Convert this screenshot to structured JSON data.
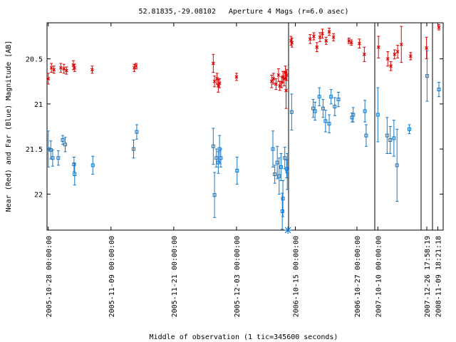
{
  "chart_data": {
    "type": "scatter",
    "title": "52.81835,-29.08102   Aperture 4 Mags (r=6.0 asec)",
    "xlabel": "Middle of observation (1 tic=345600 seconds)",
    "ylabel": "Near (Red) and Far (Blue) Magnitude [AB]",
    "y_inverted": true,
    "ylim": [
      22.4,
      20.1
    ],
    "y_ticks": [
      20.5,
      21,
      21.5,
      22
    ],
    "grid": false,
    "legend": "none",
    "colors": {
      "near": "#dd0000",
      "far": "#1177cc",
      "frame": "#000000"
    },
    "x_tick_labels": [
      "2005-10-28 00:00:00",
      "2005-11-09 00:00:00",
      "2005-11-21 00:00:00",
      "2005-12-03 00:00:00",
      "2006-10-15 00:00:00",
      "2006-10-27 00:00:00",
      "2007-10-10 00:00:00",
      "2007-12-26 17:58:19",
      "2008-11-09 18:21:18"
    ],
    "segments": [
      {
        "x_start": -0.2,
        "x_end": 38.3,
        "tick_positions": [
          0,
          10,
          20,
          30
        ]
      },
      {
        "x_start": 0,
        "x_end": 14,
        "tick_positions": [
          1.1,
          11.1
        ]
      },
      {
        "x_start": 0,
        "x_end": 7.5,
        "tick_positions": [
          0.5
        ]
      },
      {
        "x_start": 0,
        "x_end": 2.1,
        "tick_positions": [
          1.05
        ]
      },
      {
        "x_start": 0,
        "x_end": 3,
        "tick_positions": [
          1.5
        ]
      }
    ],
    "series": [
      {
        "name": "Near (Red)",
        "marker": "x",
        "points": [
          {
            "seg": 0,
            "x": 0,
            "y": 20.72,
            "err": 0.06
          },
          {
            "seg": 0,
            "x": 0.5,
            "y": 20.6,
            "err": 0.05
          },
          {
            "seg": 0,
            "x": 0.9,
            "y": 20.62,
            "err": 0.04
          },
          {
            "seg": 0,
            "x": 2,
            "y": 20.6,
            "err": 0.05
          },
          {
            "seg": 0,
            "x": 2.5,
            "y": 20.61,
            "err": 0.05
          },
          {
            "seg": 0,
            "x": 2.9,
            "y": 20.63,
            "err": 0.04
          },
          {
            "seg": 0,
            "x": 4,
            "y": 20.57,
            "err": 0.05
          },
          {
            "seg": 0,
            "x": 4.2,
            "y": 20.6,
            "err": 0.04
          },
          {
            "seg": 0,
            "x": 7,
            "y": 20.62,
            "err": 0.04
          },
          {
            "seg": 0,
            "x": 13.7,
            "y": 20.6,
            "err": 0.04
          },
          {
            "seg": 0,
            "x": 14,
            "y": 20.58,
            "err": 0.03
          },
          {
            "seg": 0,
            "x": 26.3,
            "y": 20.55,
            "err": 0.1
          },
          {
            "seg": 0,
            "x": 26.5,
            "y": 20.75,
            "err": 0.06
          },
          {
            "seg": 0,
            "x": 26.9,
            "y": 20.72,
            "err": 0.06
          },
          {
            "seg": 0,
            "x": 27.1,
            "y": 20.8,
            "err": 0.07
          },
          {
            "seg": 0,
            "x": 27.3,
            "y": 20.77,
            "err": 0.05
          },
          {
            "seg": 0,
            "x": 30,
            "y": 20.7,
            "err": 0.04
          },
          {
            "seg": 0,
            "x": 35.6,
            "y": 20.75,
            "err": 0.07
          },
          {
            "seg": 0,
            "x": 35.9,
            "y": 20.72,
            "err": 0.06
          },
          {
            "seg": 0,
            "x": 36.3,
            "y": 20.78,
            "err": 0.06
          },
          {
            "seg": 0,
            "x": 36.7,
            "y": 20.68,
            "err": 0.07
          },
          {
            "seg": 0,
            "x": 36.9,
            "y": 20.8,
            "err": 0.05
          },
          {
            "seg": 0,
            "x": 37.2,
            "y": 20.76,
            "err": 0.06
          },
          {
            "seg": 0,
            "x": 37.4,
            "y": 20.7,
            "err": 0.06
          },
          {
            "seg": 0,
            "x": 37.6,
            "y": 20.72,
            "err": 0.08
          },
          {
            "seg": 0,
            "x": 37.8,
            "y": 20.65,
            "err": 0.07
          },
          {
            "seg": 0,
            "x": 37.9,
            "y": 20.85,
            "err": 0.2
          },
          {
            "seg": 0,
            "x": 38,
            "y": 20.68,
            "err": 0.06
          },
          {
            "seg": 1,
            "x": 0.4,
            "y": 20.3,
            "err": 0.05
          },
          {
            "seg": 1,
            "x": 0.55,
            "y": 20.32,
            "err": 0.05
          },
          {
            "seg": 1,
            "x": 3.5,
            "y": 20.28,
            "err": 0.05
          },
          {
            "seg": 1,
            "x": 4.1,
            "y": 20.25,
            "err": 0.04
          },
          {
            "seg": 1,
            "x": 4.6,
            "y": 20.37,
            "err": 0.05
          },
          {
            "seg": 1,
            "x": 5.1,
            "y": 20.26,
            "err": 0.05
          },
          {
            "seg": 1,
            "x": 5.5,
            "y": 20.22,
            "err": 0.05
          },
          {
            "seg": 1,
            "x": 6.1,
            "y": 20.3,
            "err": 0.04
          },
          {
            "seg": 1,
            "x": 6.6,
            "y": 20.2,
            "err": 0.04
          },
          {
            "seg": 1,
            "x": 7.3,
            "y": 20.26,
            "err": 0.04
          },
          {
            "seg": 1,
            "x": 9.8,
            "y": 20.3,
            "err": 0.03
          },
          {
            "seg": 1,
            "x": 10.2,
            "y": 20.32,
            "err": 0.03
          },
          {
            "seg": 1,
            "x": 11.5,
            "y": 20.33,
            "err": 0.05
          },
          {
            "seg": 1,
            "x": 12.3,
            "y": 20.45,
            "err": 0.08
          },
          {
            "seg": 2,
            "x": 0.6,
            "y": 20.37,
            "err": 0.12
          },
          {
            "seg": 2,
            "x": 2.1,
            "y": 20.5,
            "err": 0.08
          },
          {
            "seg": 2,
            "x": 2.6,
            "y": 20.58,
            "err": 0.05
          },
          {
            "seg": 2,
            "x": 3.2,
            "y": 20.45,
            "err": 0.05
          },
          {
            "seg": 2,
            "x": 3.7,
            "y": 20.42,
            "err": 0.07
          },
          {
            "seg": 2,
            "x": 4.3,
            "y": 20.34,
            "err": 0.2
          },
          {
            "seg": 2,
            "x": 5.8,
            "y": 20.47,
            "err": 0.04
          },
          {
            "seg": 3,
            "x": 1,
            "y": 20.38,
            "err": 0.12
          },
          {
            "seg": 4,
            "x": 1.8,
            "y": 20.15,
            "err": 0.03
          }
        ]
      },
      {
        "name": "Far (Blue)",
        "marker": "square",
        "points": [
          {
            "seg": 0,
            "x": 0,
            "y": 21.5,
            "err": 0.2
          },
          {
            "seg": 0,
            "x": 0.4,
            "y": 21.51,
            "err": 0.1
          },
          {
            "seg": 0,
            "x": 0.7,
            "y": 21.6,
            "err": 0.09
          },
          {
            "seg": 0,
            "x": 1.6,
            "y": 21.6,
            "err": 0.08
          },
          {
            "seg": 0,
            "x": 2.3,
            "y": 21.4,
            "err": 0.05
          },
          {
            "seg": 0,
            "x": 2.7,
            "y": 21.45,
            "err": 0.08
          },
          {
            "seg": 0,
            "x": 4.1,
            "y": 21.67,
            "err": 0.08
          },
          {
            "seg": 0,
            "x": 4.2,
            "y": 21.78,
            "err": 0.12
          },
          {
            "seg": 0,
            "x": 7.1,
            "y": 21.68,
            "err": 0.1
          },
          {
            "seg": 0,
            "x": 13.6,
            "y": 21.5,
            "err": 0.1
          },
          {
            "seg": 0,
            "x": 14.1,
            "y": 21.31,
            "err": 0.08
          },
          {
            "seg": 0,
            "x": 26.3,
            "y": 21.47,
            "err": 0.2
          },
          {
            "seg": 0,
            "x": 26.5,
            "y": 22.01,
            "err": 0.25
          },
          {
            "seg": 0,
            "x": 26.8,
            "y": 21.6,
            "err": 0.1
          },
          {
            "seg": 0,
            "x": 27.1,
            "y": 21.65,
            "err": 0.12
          },
          {
            "seg": 0,
            "x": 27.3,
            "y": 21.5,
            "err": 0.15
          },
          {
            "seg": 0,
            "x": 27.5,
            "y": 21.6,
            "err": 0.1
          },
          {
            "seg": 0,
            "x": 30.1,
            "y": 21.74,
            "err": 0.15
          },
          {
            "seg": 0,
            "x": 35.8,
            "y": 21.5,
            "err": 0.2
          },
          {
            "seg": 0,
            "x": 36.1,
            "y": 21.78,
            "err": 0.1
          },
          {
            "seg": 0,
            "x": 36.5,
            "y": 21.65,
            "err": 0.18
          },
          {
            "seg": 0,
            "x": 36.8,
            "y": 21.8,
            "err": 0.2
          },
          {
            "seg": 0,
            "x": 37.1,
            "y": 21.7,
            "err": 0.15
          },
          {
            "seg": 0,
            "x": 37.4,
            "y": 22.05,
            "err": 0.2
          },
          {
            "seg": 0,
            "x": 37.7,
            "y": 21.6,
            "err": 0.12
          },
          {
            "seg": 0,
            "x": 38,
            "y": 21.72,
            "err": 0.1
          },
          {
            "seg": 0,
            "x": 38.1,
            "y": 21.75,
            "err": 0.2
          },
          {
            "seg": 0,
            "x": 37.3,
            "y": 22.19,
            "err": 0.2
          },
          {
            "seg": 1,
            "x": 0.5,
            "y": 21.09,
            "err": 0.2
          },
          {
            "seg": 1,
            "x": 4,
            "y": 21.05,
            "err": 0.1
          },
          {
            "seg": 1,
            "x": 4.3,
            "y": 21.08,
            "err": 0.1
          },
          {
            "seg": 1,
            "x": 5,
            "y": 20.92,
            "err": 0.1
          },
          {
            "seg": 1,
            "x": 5.6,
            "y": 21.05,
            "err": 0.1
          },
          {
            "seg": 1,
            "x": 6,
            "y": 21.19,
            "err": 0.12
          },
          {
            "seg": 1,
            "x": 6.6,
            "y": 21.22,
            "err": 0.1
          },
          {
            "seg": 1,
            "x": 6.9,
            "y": 20.92,
            "err": 0.08
          },
          {
            "seg": 1,
            "x": 7.5,
            "y": 21.03,
            "err": 0.1
          },
          {
            "seg": 1,
            "x": 8.1,
            "y": 20.95,
            "err": 0.08
          },
          {
            "seg": 1,
            "x": 10.3,
            "y": 21.15,
            "err": 0.05
          },
          {
            "seg": 1,
            "x": 10.5,
            "y": 21.12,
            "err": 0.08
          },
          {
            "seg": 1,
            "x": 12.4,
            "y": 21.08,
            "err": 0.12
          },
          {
            "seg": 1,
            "x": 12.6,
            "y": 21.35,
            "err": 0.12
          },
          {
            "seg": 2,
            "x": 0.5,
            "y": 21.12,
            "err": 0.3
          },
          {
            "seg": 2,
            "x": 2,
            "y": 21.35,
            "err": 0.2
          },
          {
            "seg": 2,
            "x": 2.5,
            "y": 21.4,
            "err": 0.15
          },
          {
            "seg": 2,
            "x": 3.1,
            "y": 21.38,
            "err": 0.2
          },
          {
            "seg": 2,
            "x": 3.6,
            "y": 21.68,
            "err": 0.4
          },
          {
            "seg": 2,
            "x": 5.6,
            "y": 21.28,
            "err": 0.05
          },
          {
            "seg": 3,
            "x": 1.1,
            "y": 20.69,
            "err": 0.28
          },
          {
            "seg": 4,
            "x": 1.8,
            "y": 20.84,
            "err": 0.08
          }
        ]
      }
    ],
    "special_marker": {
      "seg": 0,
      "x": 38.2,
      "y": 22.4,
      "shape": "asterisk"
    }
  }
}
